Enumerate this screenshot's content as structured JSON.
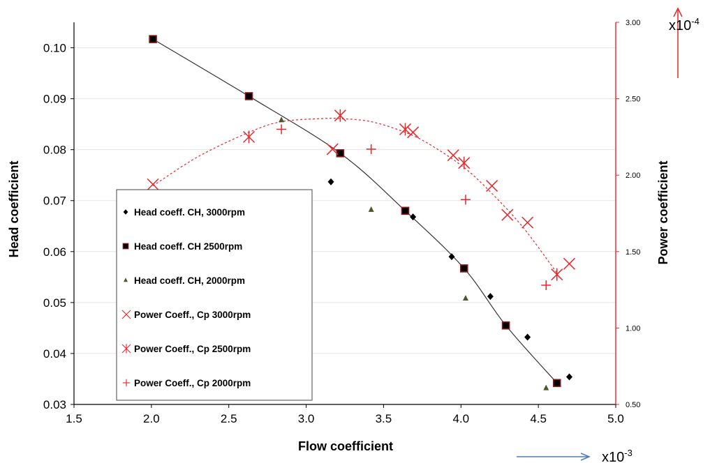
{
  "chart_data": {
    "type": "scatter",
    "xlabel": "Flow coefficient",
    "ylabel_left": "Head coefficient",
    "ylabel_right": "Power coefficient",
    "x_multiplier_label": "x10",
    "x_multiplier_exp": "-3",
    "y2_multiplier_label": "x10",
    "y2_multiplier_exp": "-4",
    "xlim": [
      1.5,
      5.0
    ],
    "ylim_left": [
      0.03,
      0.105
    ],
    "ylim_right": [
      0.5,
      3.0
    ],
    "x_ticks": [
      "1.5",
      "2.0",
      "2.5",
      "3.0",
      "3.5",
      "4.0",
      "4.5",
      "5.0"
    ],
    "y_ticks_left": [
      "0.03",
      "0.04",
      "0.05",
      "0.06",
      "0.07",
      "0.08",
      "0.09",
      "0.10"
    ],
    "y_ticks_right": [
      "0.50",
      "1.00",
      "1.50",
      "2.00",
      "2.50",
      "3.00"
    ],
    "right_axis_color": "#e8262b",
    "series": [
      {
        "name": "Head coeff. CH, 3000rpm",
        "axis": "left",
        "marker": "diamond",
        "color": "#000000",
        "x": [
          3.16,
          3.69,
          3.94,
          4.19,
          4.43,
          4.7
        ],
        "y": [
          0.0737,
          0.0668,
          0.059,
          0.0512,
          0.0432,
          0.0354
        ]
      },
      {
        "name": "Head coeff. CH 2500rpm",
        "axis": "left",
        "marker": "square",
        "color": "#000000",
        "edge": "#8b1a1a",
        "x": [
          2.01,
          2.63,
          3.22,
          3.64,
          4.02,
          4.29,
          4.62
        ],
        "y": [
          0.1017,
          0.0905,
          0.0793,
          0.068,
          0.0567,
          0.0455,
          0.0342
        ]
      },
      {
        "name": "Head coeff. CH, 2000rpm",
        "axis": "left",
        "marker": "triangle",
        "color": "#4a5a24",
        "x": [
          2.84,
          3.42,
          4.03,
          4.55
        ],
        "y": [
          0.0858,
          0.0682,
          0.0508,
          0.0332
        ]
      },
      {
        "name": "Power Coeff., Cp 3000rpm",
        "axis": "right",
        "marker": "x",
        "color": "#e8262b",
        "x": [
          2.01,
          3.17,
          3.69,
          3.95,
          4.2,
          4.3,
          4.43,
          4.7
        ],
        "y": [
          1.94,
          2.17,
          2.28,
          2.13,
          1.93,
          1.74,
          1.69,
          1.42
        ]
      },
      {
        "name": "Power Coeff., Cp 2500rpm",
        "axis": "right",
        "marker": "asterisk",
        "color": "#e8262b",
        "x": [
          2.63,
          3.22,
          3.64,
          4.02,
          4.62
        ],
        "y": [
          2.25,
          2.39,
          2.3,
          2.08,
          1.35
        ]
      },
      {
        "name": "Power Coeff., Cp 2000rpm",
        "axis": "right",
        "marker": "plus",
        "color": "#e8262b",
        "x": [
          2.84,
          3.42,
          4.03,
          4.55
        ],
        "y": [
          2.3,
          2.17,
          1.84,
          1.28
        ]
      }
    ],
    "trendlines": [
      {
        "axis": "left",
        "style": "solid",
        "color": "#333333",
        "x": [
          2.01,
          2.63,
          3.22,
          3.64,
          4.02,
          4.29,
          4.62
        ],
        "y": [
          0.1017,
          0.0905,
          0.0793,
          0.068,
          0.0567,
          0.0455,
          0.0342
        ]
      },
      {
        "axis": "right",
        "style": "dotted",
        "color": "#e8262b",
        "x": [
          2.01,
          2.3,
          2.63,
          2.84,
          3.1,
          3.22,
          3.42,
          3.64,
          3.8,
          4.02,
          4.2,
          4.4,
          4.62
        ],
        "y": [
          1.93,
          2.12,
          2.28,
          2.35,
          2.37,
          2.37,
          2.35,
          2.28,
          2.2,
          2.05,
          1.88,
          1.66,
          1.36
        ]
      }
    ],
    "legend_position": "lower-left"
  }
}
